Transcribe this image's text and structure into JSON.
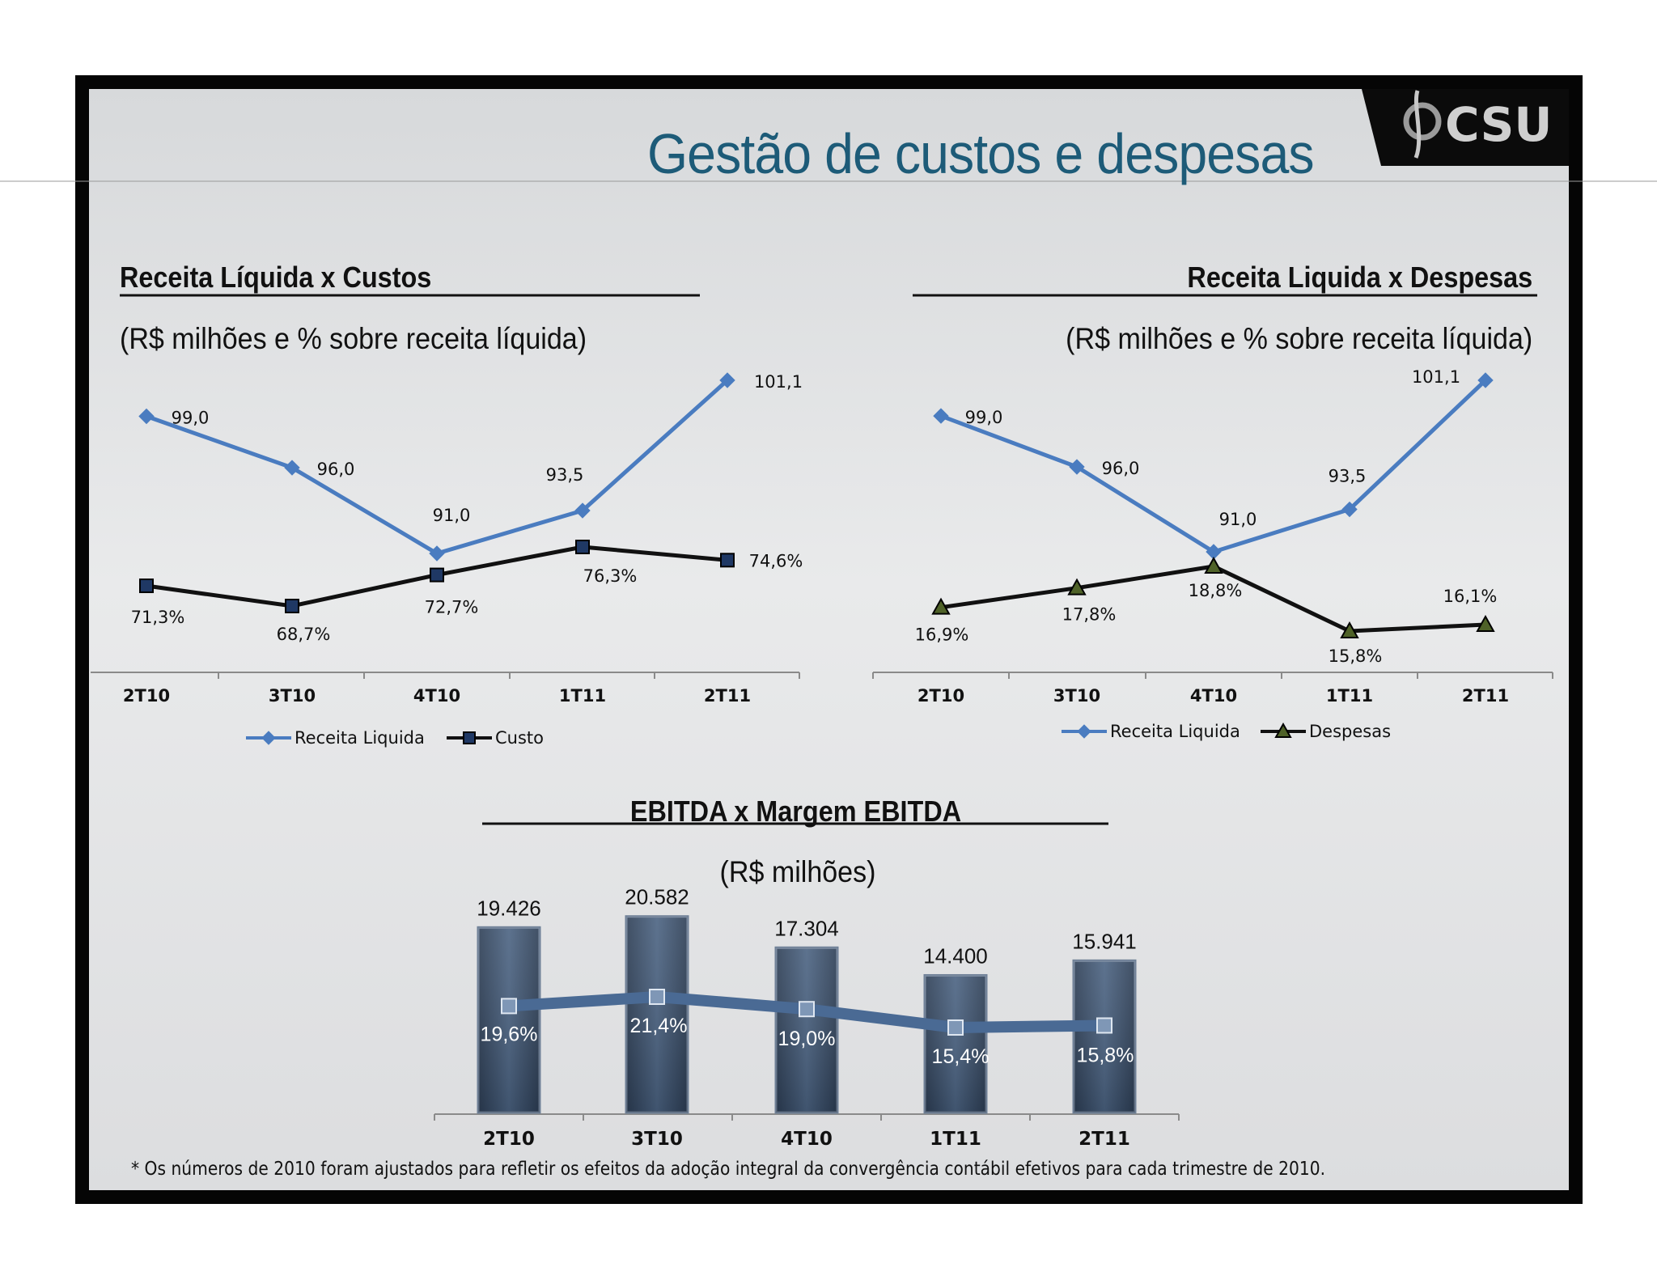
{
  "slide": {
    "title": "Gestão de custos e despesas",
    "logo_text": "CSU",
    "footnote": "* Os números de 2010 foram ajustados para refletir os efeitos da adoção integral da convergência contábil efetivos para cada trimestre de 2010."
  },
  "sections": {
    "costs": {
      "title": "Receita Líquida x Custos",
      "subtitle": "(R$ milhões e % sobre receita líquida)"
    },
    "expenses": {
      "title": "Receita Liquida x Despesas",
      "subtitle": "(R$ milhões e % sobre receita líquida)"
    },
    "ebitda": {
      "title": "EBITDA x Margem EBITDA",
      "subtitle": "(R$ milhões)"
    }
  },
  "colors": {
    "revenue": "#4a7cc0",
    "line_dark": "#111111",
    "cost_marker": "#1f3864",
    "expense_marker": "#4f6228",
    "bar": "#3a4f69",
    "margin_line": "#4a6a94"
  },
  "chart_data": [
    {
      "id": "costs",
      "type": "line",
      "categories": [
        "2T10",
        "3T10",
        "4T10",
        "1T11",
        "2T11"
      ],
      "series": [
        {
          "name": "Receita Liquida",
          "values": [
            99.0,
            96.0,
            91.0,
            93.5,
            101.1
          ],
          "labels": [
            "99,0",
            "96,0",
            "91,0",
            "93,5",
            "101,1"
          ]
        },
        {
          "name": "Custo",
          "values": [
            71.3,
            68.7,
            72.7,
            76.3,
            74.6
          ],
          "labels": [
            "71,3%",
            "68,7%",
            "72,7%",
            "76,3%",
            "74,6%"
          ]
        }
      ],
      "legend": "bottom"
    },
    {
      "id": "expenses",
      "type": "line",
      "categories": [
        "2T10",
        "3T10",
        "4T10",
        "1T11",
        "2T11"
      ],
      "series": [
        {
          "name": "Receita Liquida",
          "values": [
            99.0,
            96.0,
            91.0,
            93.5,
            101.1
          ],
          "labels": [
            "99,0",
            "96,0",
            "91,0",
            "93,5",
            "101,1"
          ]
        },
        {
          "name": "Despesas",
          "values": [
            16.9,
            17.8,
            18.8,
            15.8,
            16.1
          ],
          "labels": [
            "16,9%",
            "17,8%",
            "18,8%",
            "15,8%",
            "16,1%"
          ]
        }
      ],
      "legend": "bottom"
    },
    {
      "id": "ebitda",
      "type": "bar",
      "categories": [
        "2T10",
        "3T10",
        "4T10",
        "1T11",
        "2T11"
      ],
      "series": [
        {
          "name": "EBITDA",
          "values": [
            19426,
            20582,
            17304,
            14400,
            15941
          ],
          "labels": [
            "19.426",
            "20.582",
            "17.304",
            "14.400",
            "15.941"
          ]
        },
        {
          "name": "Margem EBITDA",
          "values": [
            19.6,
            21.4,
            19.0,
            15.4,
            15.8
          ],
          "labels": [
            "19,6%",
            "21,4%",
            "19,0%",
            "15,4%",
            "15,8%"
          ]
        }
      ],
      "ylim": [
        0,
        22000
      ]
    }
  ]
}
